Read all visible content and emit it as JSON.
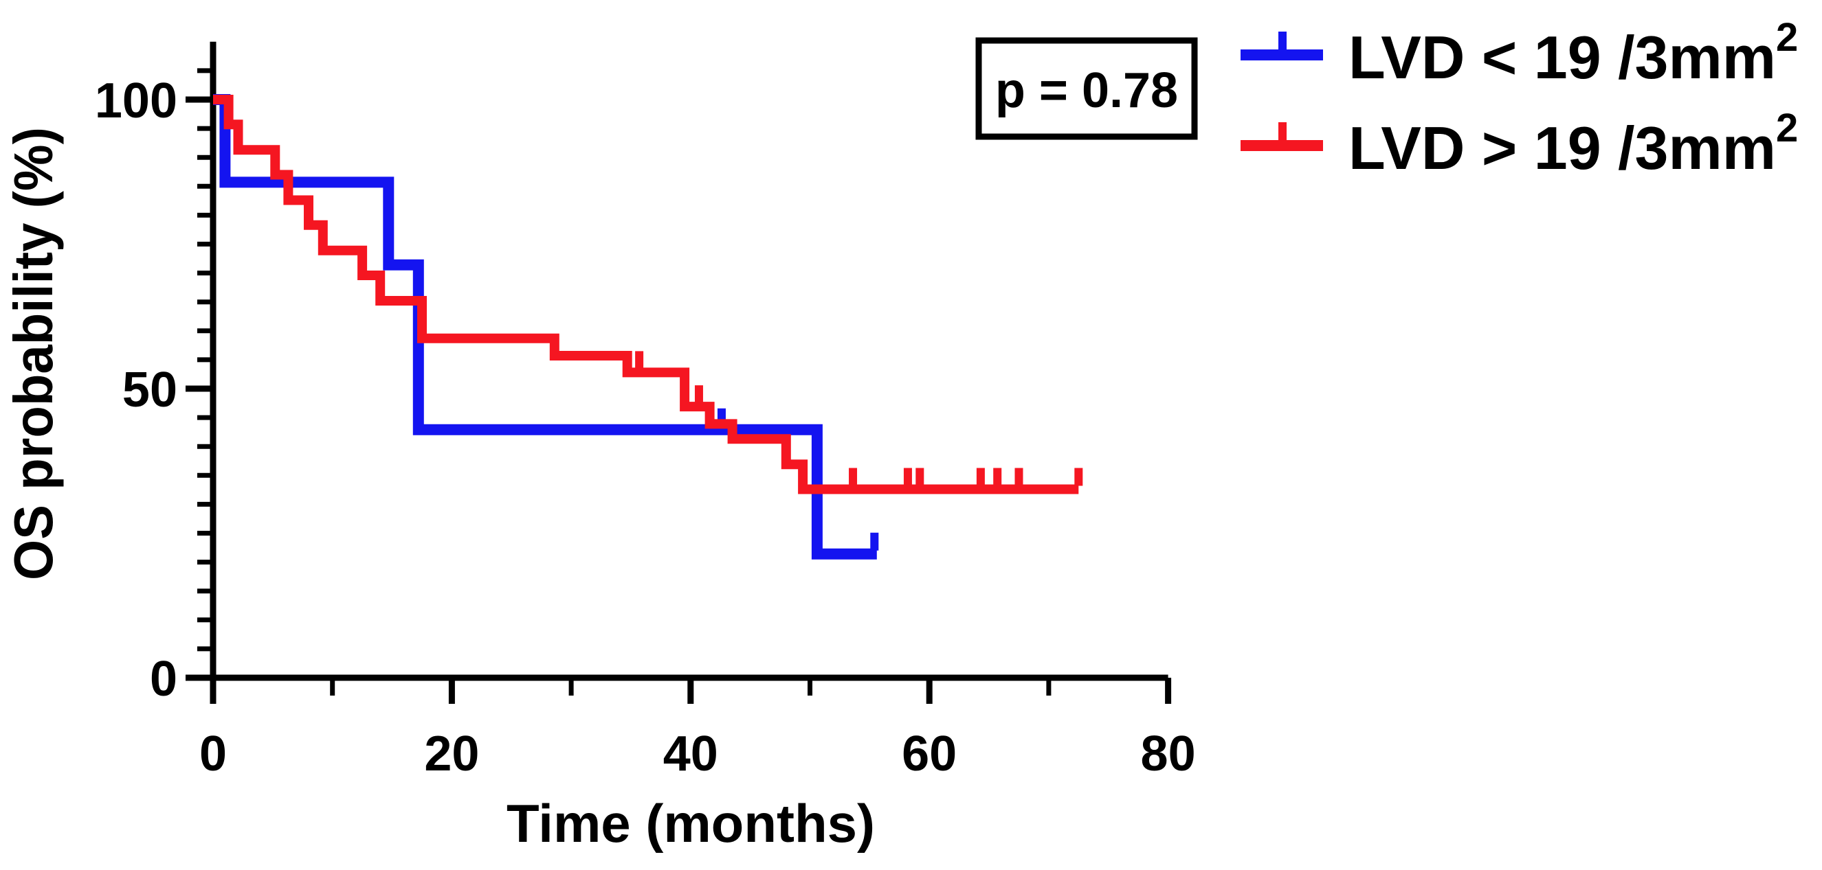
{
  "chart_data": {
    "type": "line",
    "subtype": "kaplan-meier-step-curves",
    "title": "",
    "xlabel": "Time (months)",
    "ylabel": "OS probability (%)",
    "xlim": [
      0,
      81.5
    ],
    "ylim": [
      0,
      110
    ],
    "x_major_ticks": [
      0,
      20,
      40,
      60,
      80
    ],
    "x_minor_ticks": [
      10,
      30,
      50,
      70
    ],
    "y_major_ticks": [
      0,
      50,
      100
    ],
    "y_minor_tick_step": 5,
    "grid": false,
    "axis_color": "#000000",
    "legend_position": "top-right-outside",
    "annotation": {
      "text": "p = 0.78"
    },
    "series": [
      {
        "name_prefix": "LVD < 19 /3mm",
        "name_sup": "2",
        "color": "#1414f0",
        "steps": [
          [
            0,
            100
          ],
          [
            1,
            85.7
          ],
          [
            14.7,
            71.4
          ],
          [
            17.2,
            42.9
          ],
          [
            50.6,
            21.4
          ]
        ],
        "end_t": 55.6,
        "censor_ticks": [
          [
            42.6,
            42.9
          ],
          [
            55.4,
            21.4
          ]
        ]
      },
      {
        "name_prefix": "LVD > 19 /3mm",
        "name_sup": "2",
        "color": "#f51621",
        "steps": [
          [
            0,
            100
          ],
          [
            1.3,
            95.7
          ],
          [
            2.1,
            91.3
          ],
          [
            5.2,
            87
          ],
          [
            6.3,
            82.6
          ],
          [
            8,
            78.3
          ],
          [
            9.2,
            73.9
          ],
          [
            12.5,
            69.6
          ],
          [
            14,
            65.2
          ],
          [
            17.5,
            58.7
          ],
          [
            28.6,
            55.7
          ],
          [
            34.7,
            52.8
          ],
          [
            39.5,
            46.9
          ],
          [
            41.6,
            43.9
          ],
          [
            43.5,
            41.3
          ],
          [
            48,
            36.9
          ],
          [
            49.4,
            32.6
          ]
        ],
        "end_t": 72.5,
        "censor_ticks": [
          [
            35.7,
            52.8
          ],
          [
            40.7,
            46.9
          ],
          [
            53.6,
            32.6
          ],
          [
            58.2,
            32.6
          ],
          [
            59.2,
            32.6
          ],
          [
            64.3,
            32.6
          ],
          [
            65.7,
            32.6
          ],
          [
            67.5,
            32.6
          ],
          [
            72.5,
            32.6
          ]
        ]
      }
    ]
  }
}
